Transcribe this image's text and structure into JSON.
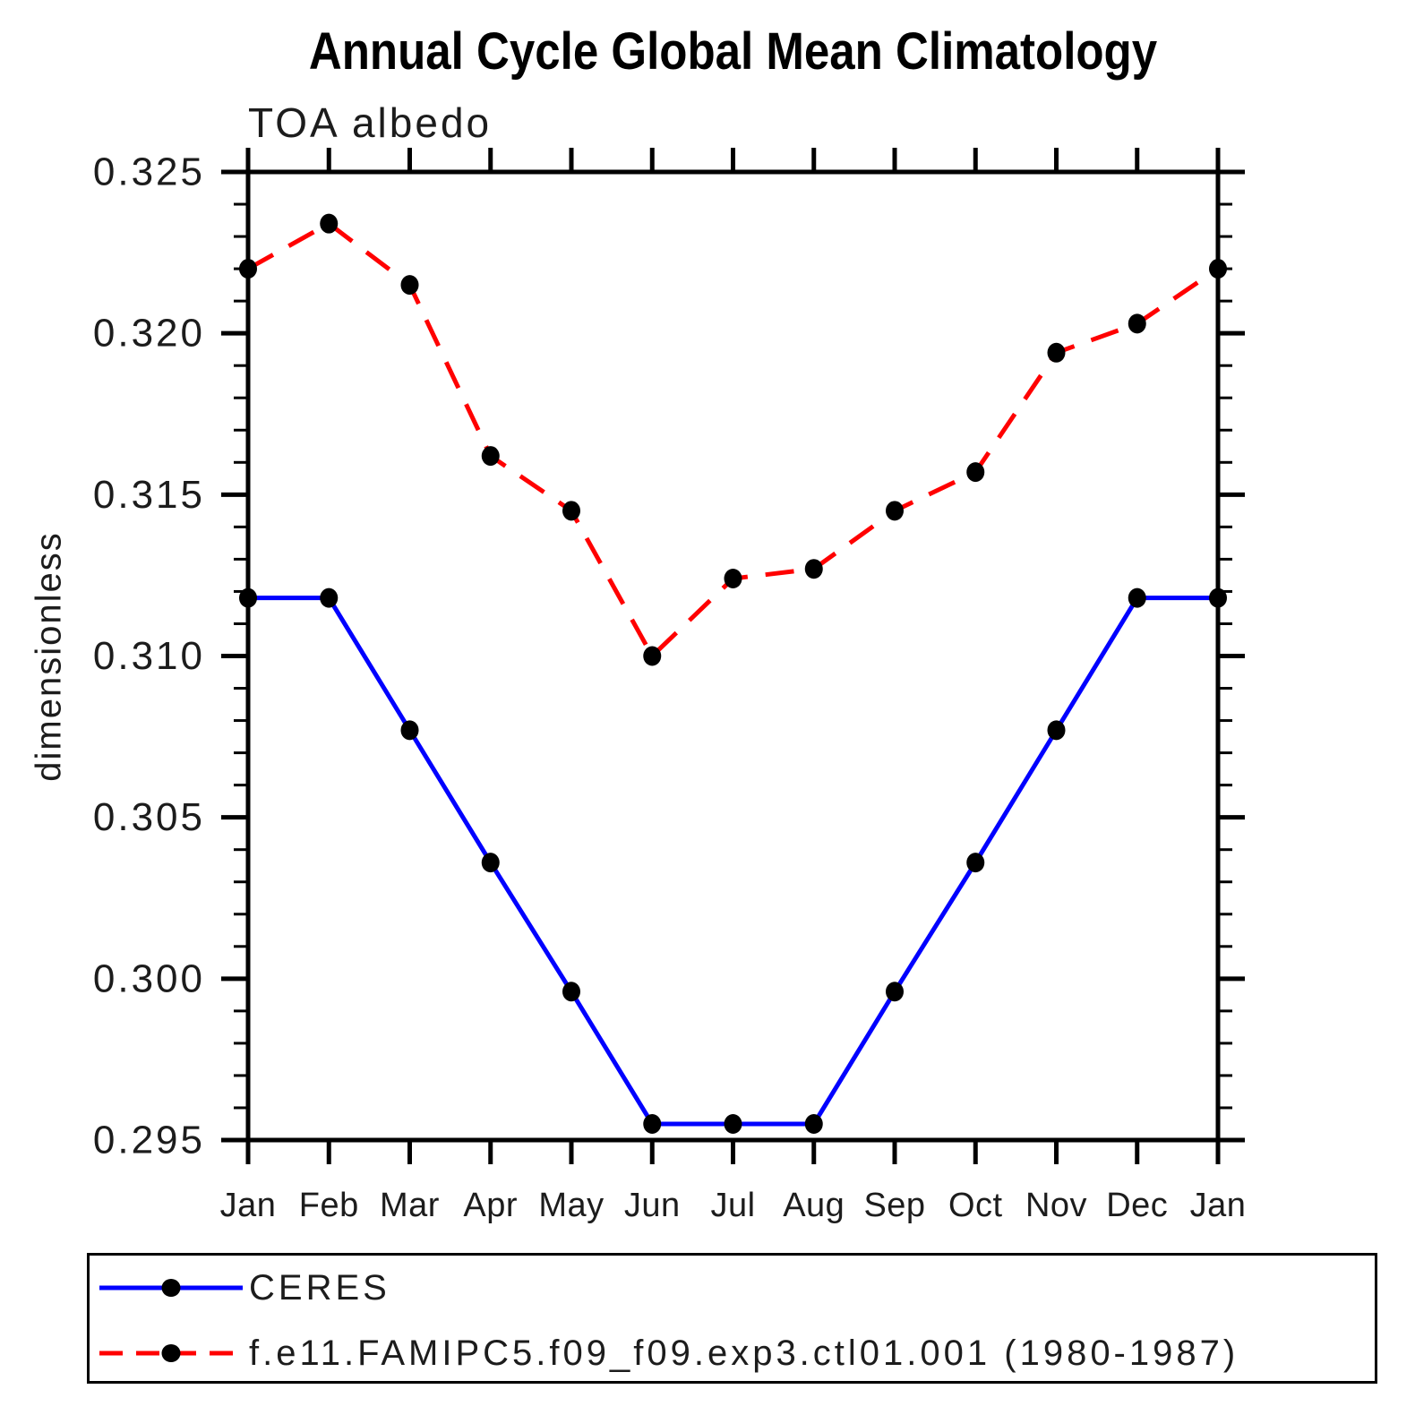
{
  "chart_data": {
    "type": "line",
    "title": "Annual Cycle Global Mean Climatology",
    "subtitle": "TOA albedo",
    "ylabel": "dimensionless",
    "xlabel": "",
    "categories": [
      "Jan",
      "Feb",
      "Mar",
      "Apr",
      "May",
      "Jun",
      "Jul",
      "Aug",
      "Sep",
      "Oct",
      "Nov",
      "Dec",
      "Jan"
    ],
    "ylim": [
      0.295,
      0.325
    ],
    "y_major_step": 0.005,
    "y_minor_step": 0.001,
    "y_tick_labels": [
      "0.295",
      "0.300",
      "0.305",
      "0.310",
      "0.315",
      "0.320",
      "0.325"
    ],
    "grid": false,
    "legend_position": "bottom-left-box",
    "axis_color": "#000000",
    "marker_color": "#000000",
    "series": [
      {
        "name": "CERES",
        "color": "#0000ff",
        "line_style": "solid",
        "marker": "filled-circle",
        "values": [
          0.3118,
          0.3118,
          0.3077,
          0.3036,
          0.2996,
          0.2955,
          0.2955,
          0.2955,
          0.2996,
          0.3036,
          0.3077,
          0.3118,
          0.3118
        ]
      },
      {
        "name": "f.e11.FAMIPC5.f09_f09.exp3.ctl01.001 (1980-1987)",
        "color": "#ff0000",
        "line_style": "dashed",
        "marker": "filled-circle",
        "values": [
          0.322,
          0.3234,
          0.3215,
          0.3162,
          0.3145,
          0.31,
          0.3124,
          0.3127,
          0.3145,
          0.3157,
          0.3194,
          0.3203,
          0.322
        ]
      }
    ]
  }
}
